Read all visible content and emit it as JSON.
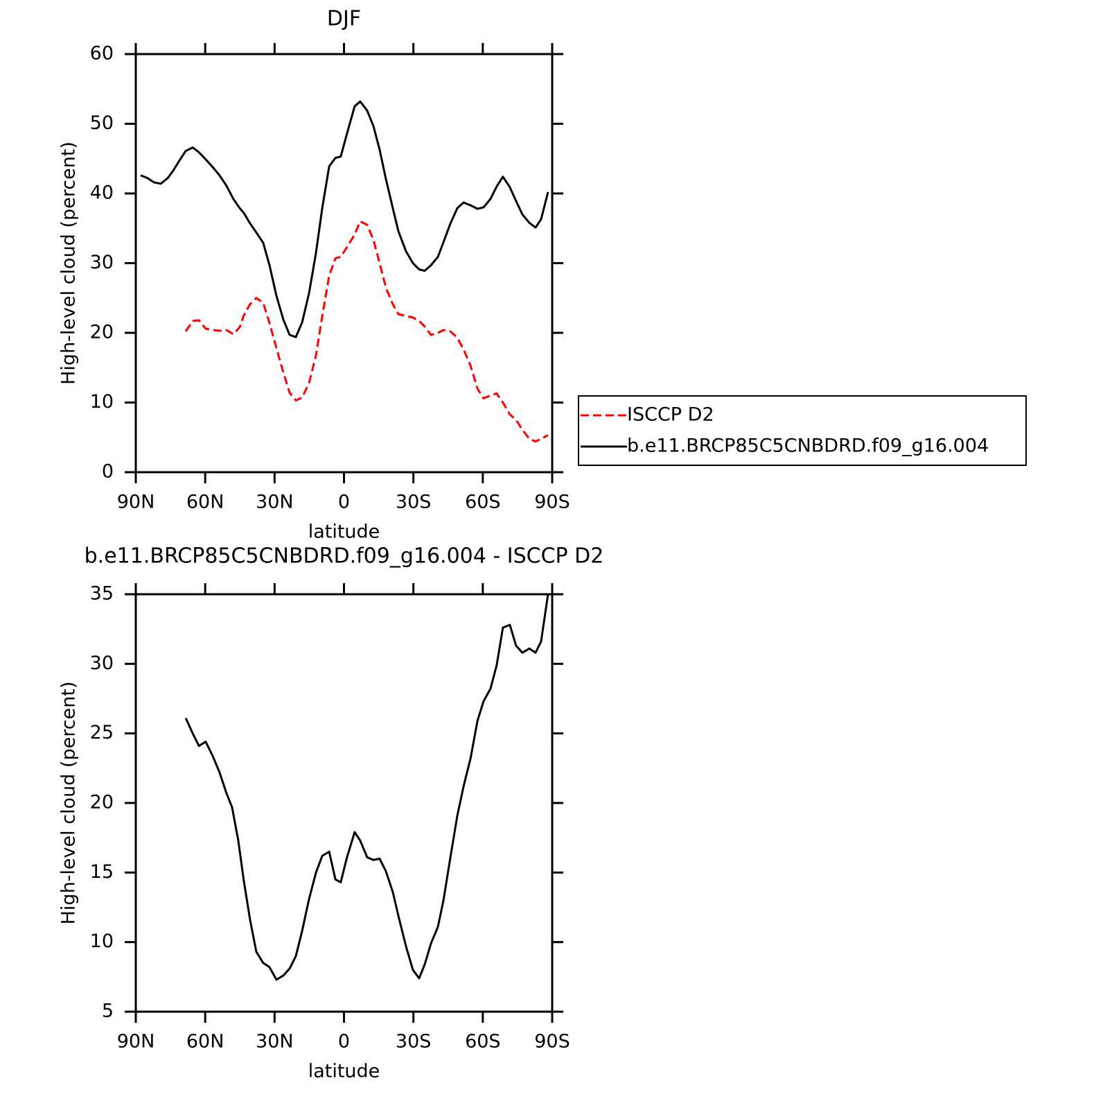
{
  "chart_data": [
    {
      "type": "line",
      "title": "DJF",
      "xlabel": "latitude",
      "ylabel": "High-level cloud (percent)",
      "x": [
        87.9,
        84.9,
        82.2,
        79.2,
        76.2,
        73.8,
        70.8,
        68.4,
        65.4,
        62.7,
        59.8,
        56.8,
        53.8,
        50.8,
        47.8,
        45.1,
        43.3,
        40.6,
        37.9,
        34.9,
        32.2,
        29.2,
        26.2,
        23.5,
        20.8,
        18.1,
        15.1,
        12.1,
        9.4,
        6.4,
        3.7,
        1.4,
        -1.3,
        -4.6,
        -7.0,
        -10.0,
        -12.7,
        -15.4,
        -18.1,
        -21.1,
        -23.5,
        -26.8,
        -29.8,
        -32.5,
        -34.9,
        -37.6,
        -40.6,
        -43.0,
        -46.0,
        -49.0,
        -51.7,
        -54.7,
        -57.7,
        -60.3,
        -63.3,
        -66.0,
        -68.7,
        -71.7,
        -74.4,
        -77.1,
        -80.1,
        -82.8,
        -85.2,
        -88.2
      ],
      "series": [
        {
          "name": "ISCCP D2",
          "color": "#ff0000",
          "linestyle": "dashed",
          "values": [
            null,
            null,
            null,
            null,
            null,
            null,
            null,
            20.2,
            21.7,
            21.8,
            20.6,
            20.4,
            20.3,
            20.4,
            19.8,
            20.8,
            22.5,
            24.1,
            25.0,
            24.3,
            21.4,
            17.8,
            14.3,
            11.4,
            10.3,
            10.7,
            12.8,
            16.8,
            22.4,
            28.2,
            30.7,
            30.9,
            32.3,
            34.1,
            36.0,
            35.5,
            33.4,
            30.0,
            26.5,
            24.1,
            22.7,
            22.4,
            22.2,
            21.7,
            20.9,
            19.7,
            20.0,
            20.4,
            20.2,
            19.3,
            17.6,
            15.3,
            12.0,
            10.6,
            11.0,
            11.3,
            10.0,
            8.3,
            7.5,
            6.1,
            4.8,
            4.4,
            4.8,
            5.3
          ]
        },
        {
          "name": "b.e11.BRCP85C5CNBDRD.f09_g16.004",
          "color": "#000000",
          "linestyle": "solid",
          "values": [
            42.6,
            42.2,
            41.6,
            41.4,
            42.2,
            43.3,
            44.9,
            46.1,
            46.6,
            45.9,
            44.9,
            43.8,
            42.6,
            41.1,
            39.2,
            37.9,
            37.2,
            35.7,
            34.4,
            32.9,
            29.7,
            25.3,
            21.9,
            19.7,
            19.4,
            21.5,
            25.7,
            31.5,
            37.9,
            43.9,
            45.1,
            45.3,
            48.6,
            52.5,
            53.2,
            51.9,
            49.7,
            46.3,
            42.1,
            37.9,
            34.6,
            31.7,
            30.0,
            29.1,
            28.9,
            29.7,
            30.9,
            33.0,
            35.7,
            37.9,
            38.7,
            38.3,
            37.8,
            38.0,
            39.2,
            41.0,
            42.4,
            40.9,
            38.9,
            37.0,
            35.8,
            35.1,
            36.3,
            40.2
          ]
        }
      ],
      "xlim": [
        90,
        -90
      ],
      "xticks": [
        {
          "value": 90,
          "label": "90N"
        },
        {
          "value": 60,
          "label": "60N"
        },
        {
          "value": 30,
          "label": "30N"
        },
        0,
        {
          "value": -30,
          "label": "30S"
        },
        {
          "value": -60,
          "label": "60S"
        },
        {
          "value": -90,
          "label": "90S"
        }
      ],
      "ylim": [
        0,
        60
      ],
      "yticks": [
        0,
        10,
        20,
        30,
        40,
        50,
        60
      ],
      "legend": "right"
    },
    {
      "type": "line",
      "title": "b.e11.BRCP85C5CNBDRD.f09_g16.004 - ISCCP D2",
      "xlabel": "latitude",
      "ylabel": "High-level cloud (percent)",
      "x": [
        68.4,
        65.4,
        62.7,
        59.8,
        56.8,
        53.8,
        50.8,
        48.4,
        45.7,
        43.3,
        40.6,
        37.9,
        34.9,
        32.2,
        29.2,
        26.2,
        23.5,
        20.8,
        18.1,
        15.1,
        12.1,
        9.4,
        6.4,
        3.7,
        1.4,
        -1.3,
        -4.6,
        -7.0,
        -10.0,
        -12.7,
        -15.4,
        -18.1,
        -21.1,
        -23.5,
        -26.8,
        -29.8,
        -32.5,
        -34.9,
        -37.6,
        -40.6,
        -43.0,
        -46.0,
        -49.0,
        -51.7,
        -54.7,
        -57.7,
        -60.3,
        -63.3,
        -66.0,
        -68.7,
        -71.7,
        -74.4,
        -77.1,
        -80.1,
        -82.8,
        -85.2,
        -88.2
      ],
      "series": [
        {
          "color": "#000000",
          "linestyle": "solid",
          "values": [
            26.1,
            25.0,
            24.1,
            24.4,
            23.4,
            22.2,
            20.7,
            19.7,
            17.3,
            14.4,
            11.6,
            9.3,
            8.5,
            8.2,
            7.3,
            7.6,
            8.1,
            9.0,
            10.8,
            13.1,
            15.0,
            16.2,
            16.5,
            14.5,
            14.3,
            16.1,
            17.9,
            17.3,
            16.1,
            15.9,
            16.0,
            15.1,
            13.6,
            11.9,
            9.7,
            8.0,
            7.4,
            8.4,
            9.9,
            11.1,
            13.0,
            16.1,
            19.1,
            21.2,
            23.2,
            25.9,
            27.3,
            28.2,
            29.9,
            32.6,
            32.8,
            31.3,
            30.8,
            31.1,
            30.8,
            31.6,
            35.0
          ]
        }
      ],
      "xlim": [
        90,
        -90
      ],
      "xticks": [
        {
          "value": 90,
          "label": "90N"
        },
        {
          "value": 60,
          "label": "60N"
        },
        {
          "value": 30,
          "label": "30N"
        },
        0,
        {
          "value": -30,
          "label": "30S"
        },
        {
          "value": -60,
          "label": "60S"
        },
        {
          "value": -90,
          "label": "90S"
        }
      ],
      "ylim": [
        5,
        35
      ],
      "yticks": [
        5,
        10,
        15,
        20,
        25,
        30,
        35
      ]
    }
  ]
}
